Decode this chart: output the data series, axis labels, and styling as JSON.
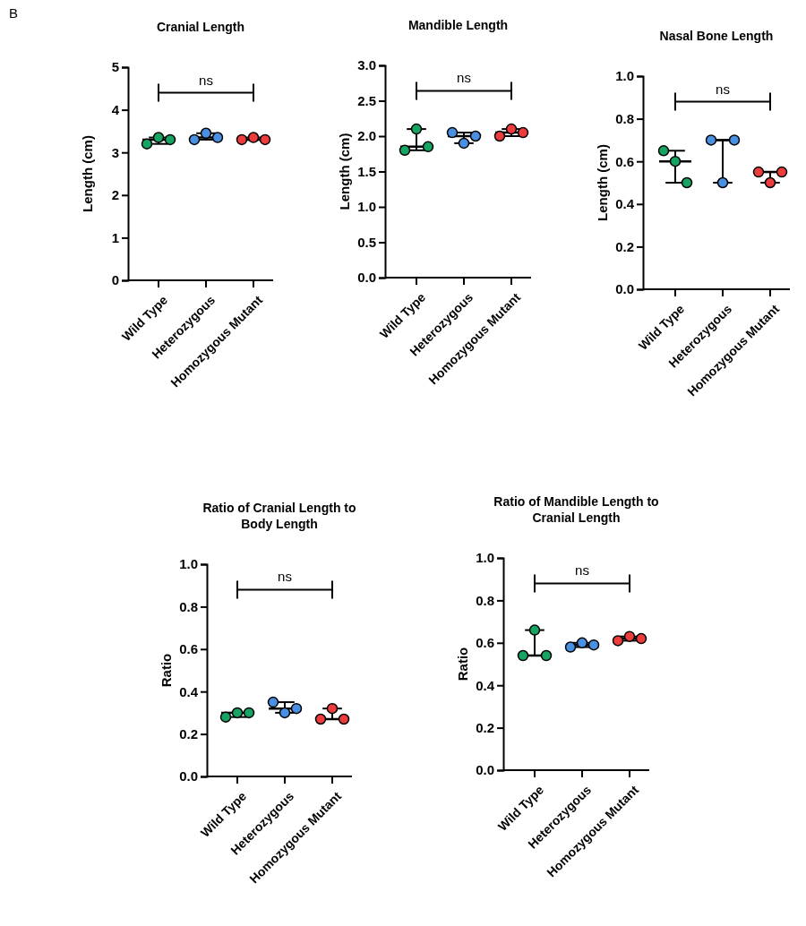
{
  "chart_data": [
    {
      "type": "box",
      "title": "Cranial Length",
      "ylabel": "Length (cm)",
      "categories": [
        "Wild Type",
        "Heterozygous",
        "Homozygous Mutant"
      ],
      "boxes": [
        {
          "low": 3.2,
          "q1": 3.3,
          "median": 3.3,
          "q3": 3.3,
          "high": 3.35
        },
        {
          "low": 3.3,
          "q1": 3.35,
          "median": 3.35,
          "q3": 3.35,
          "high": 3.45
        },
        {
          "low": 3.3,
          "q1": 3.3,
          "median": 3.3,
          "q3": 3.3,
          "high": 3.35
        }
      ],
      "series": [
        {
          "type": "scatter",
          "x": [
            "Wild Type",
            "Wild Type",
            "Wild Type",
            "Heterozygous",
            "Heterozygous",
            "Heterozygous",
            "Homozygous Mutant",
            "Homozygous Mutant",
            "Homozygous Mutant"
          ],
          "values": [
            3.2,
            3.35,
            3.3,
            3.3,
            3.45,
            3.35,
            3.3,
            3.35,
            3.3
          ],
          "colors": [
            "#17a463",
            "#17a463",
            "#17a463",
            "#4a90e2",
            "#4a90e2",
            "#4a90e2",
            "#ee3b3b",
            "#ee3b3b",
            "#ee3b3b"
          ]
        }
      ],
      "ylim": [
        0,
        5
      ],
      "yticks": [
        0,
        1,
        2,
        3,
        4,
        5
      ],
      "annotations": [
        "B",
        "ns"
      ]
    },
    {
      "type": "box",
      "title": "Mandible Length",
      "ylabel": "Length (cm)",
      "categories": [
        "Wild Type",
        "Heterozygous",
        "Homozygous Mutant"
      ],
      "boxes": [
        {
          "low": 1.8,
          "q1": 1.85,
          "median": 1.85,
          "q3": 1.85,
          "high": 2.1
        },
        {
          "low": 1.9,
          "q1": 2.0,
          "median": 2.0,
          "q3": 2.0,
          "high": 2.05
        },
        {
          "low": 2.0,
          "q1": 2.05,
          "median": 2.05,
          "q3": 2.05,
          "high": 2.1
        }
      ],
      "series": [
        {
          "type": "scatter",
          "x": [
            "Wild Type",
            "Wild Type",
            "Wild Type",
            "Heterozygous",
            "Heterozygous",
            "Heterozygous",
            "Homozygous Mutant",
            "Homozygous Mutant",
            "Homozygous Mutant"
          ],
          "values": [
            1.8,
            2.1,
            1.85,
            2.05,
            1.9,
            2.0,
            2.0,
            2.1,
            2.05
          ],
          "colors": [
            "#17a463",
            "#17a463",
            "#17a463",
            "#4a90e2",
            "#4a90e2",
            "#4a90e2",
            "#ee3b3b",
            "#ee3b3b",
            "#ee3b3b"
          ]
        }
      ],
      "ylim": [
        0,
        3
      ],
      "yticks": [
        {
          "value": 0,
          "label": "0.0"
        },
        0.5,
        {
          "value": 1,
          "label": "1.0"
        },
        1.5,
        {
          "value": 2,
          "label": "2.0"
        },
        2.5,
        {
          "value": 3,
          "label": "3.0"
        }
      ],
      "annotations": [
        "ns"
      ]
    },
    {
      "type": "box",
      "title": "Nasal Bone Length",
      "ylabel": "Length (cm)",
      "categories": [
        "Wild Type",
        "Heterozygous",
        "Homozygous Mutant"
      ],
      "boxes": [
        {
          "low": 0.5,
          "q1": 0.6,
          "median": 0.6,
          "q3": 0.6,
          "high": 0.65
        },
        {
          "low": 0.5,
          "q1": 0.7,
          "median": 0.7,
          "q3": 0.7,
          "high": 0.7
        },
        {
          "low": 0.5,
          "q1": 0.55,
          "median": 0.55,
          "q3": 0.55,
          "high": 0.55
        }
      ],
      "series": [
        {
          "type": "scatter",
          "x": [
            "Wild Type",
            "Wild Type",
            "Wild Type",
            "Heterozygous",
            "Heterozygous",
            "Heterozygous",
            "Homozygous Mutant",
            "Homozygous Mutant",
            "Homozygous Mutant"
          ],
          "values": [
            0.65,
            0.6,
            0.5,
            0.7,
            0.5,
            0.7,
            0.55,
            0.5,
            0.55
          ],
          "colors": [
            "#17a463",
            "#17a463",
            "#17a463",
            "#4a90e2",
            "#4a90e2",
            "#4a90e2",
            "#ee3b3b",
            "#ee3b3b",
            "#ee3b3b"
          ]
        }
      ],
      "ylim": [
        0,
        1
      ],
      "yticks": [
        {
          "value": 0,
          "label": "0.0"
        },
        0.2,
        0.4,
        0.6,
        0.8,
        {
          "value": 1,
          "label": "1.0"
        }
      ],
      "annotations": [
        "ns"
      ]
    },
    {
      "type": "box",
      "title": "Ratio of Cranial Length to Body Length",
      "ylabel": "Ratio",
      "categories": [
        "Wild Type",
        "Heterozygous",
        "Homozygous Mutant"
      ],
      "boxes": [
        {
          "low": 0.28,
          "q1": 0.3,
          "median": 0.3,
          "q3": 0.3,
          "high": 0.3
        },
        {
          "low": 0.3,
          "q1": 0.32,
          "median": 0.32,
          "q3": 0.32,
          "high": 0.35
        },
        {
          "low": 0.27,
          "q1": 0.27,
          "median": 0.27,
          "q3": 0.27,
          "high": 0.32
        }
      ],
      "series": [
        {
          "type": "scatter",
          "x": [
            "Wild Type",
            "Wild Type",
            "Wild Type",
            "Heterozygous",
            "Heterozygous",
            "Heterozygous",
            "Homozygous Mutant",
            "Homozygous Mutant",
            "Homozygous Mutant"
          ],
          "values": [
            0.28,
            0.3,
            0.3,
            0.35,
            0.3,
            0.32,
            0.27,
            0.32,
            0.27
          ],
          "colors": [
            "#17a463",
            "#17a463",
            "#17a463",
            "#4a90e2",
            "#4a90e2",
            "#4a90e2",
            "#ee3b3b",
            "#ee3b3b",
            "#ee3b3b"
          ]
        }
      ],
      "ylim": [
        0,
        1
      ],
      "yticks": [
        {
          "value": 0,
          "label": "0.0"
        },
        0.2,
        0.4,
        0.6,
        0.8,
        {
          "value": 1,
          "label": "1.0"
        }
      ],
      "annotations": [
        "ns"
      ]
    },
    {
      "type": "box",
      "title": "Ratio of Mandible Length to Cranial Length",
      "ylabel": "Ratio",
      "categories": [
        "Wild Type",
        "Heterozygous",
        "Homozygous Mutant"
      ],
      "boxes": [
        {
          "low": 0.54,
          "q1": 0.54,
          "median": 0.54,
          "q3": 0.54,
          "high": 0.66
        },
        {
          "low": 0.58,
          "q1": 0.59,
          "median": 0.59,
          "q3": 0.59,
          "high": 0.6
        },
        {
          "low": 0.61,
          "q1": 0.62,
          "median": 0.62,
          "q3": 0.62,
          "high": 0.63
        }
      ],
      "series": [
        {
          "type": "scatter",
          "x": [
            "Wild Type",
            "Wild Type",
            "Wild Type",
            "Heterozygous",
            "Heterozygous",
            "Heterozygous",
            "Homozygous Mutant",
            "Homozygous Mutant",
            "Homozygous Mutant"
          ],
          "values": [
            0.54,
            0.66,
            0.54,
            0.58,
            0.6,
            0.59,
            0.61,
            0.63,
            0.62
          ],
          "colors": [
            "#17a463",
            "#17a463",
            "#17a463",
            "#4a90e2",
            "#4a90e2",
            "#4a90e2",
            "#ee3b3b",
            "#ee3b3b",
            "#ee3b3b"
          ]
        }
      ],
      "ylim": [
        0,
        1
      ],
      "yticks": [
        {
          "value": 0,
          "label": "0.0"
        },
        0.2,
        0.4,
        0.6,
        0.8,
        {
          "value": 1,
          "label": "1.0"
        }
      ],
      "annotations": [
        "ns"
      ]
    }
  ]
}
